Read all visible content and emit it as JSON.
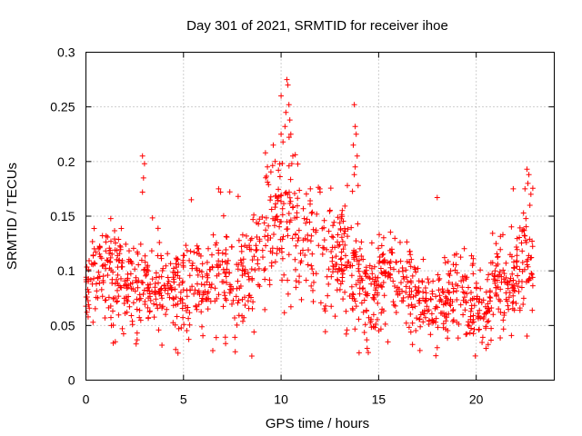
{
  "chart_data": {
    "type": "scatter",
    "title": "Day 301 of 2021, SRMTID for receiver ihoe",
    "xlabel": "GPS time / hours",
    "ylabel": "SRMTID / TECUs",
    "xlim": [
      0,
      24
    ],
    "ylim": [
      0,
      0.3
    ],
    "xticks": [
      0,
      5,
      10,
      15,
      20
    ],
    "xtick_labels": [
      "0",
      "5",
      "10",
      "15",
      "20"
    ],
    "yticks": [
      0,
      0.05,
      0.1,
      0.15,
      0.2,
      0.25,
      0.3
    ],
    "ytick_labels": [
      "0",
      "0.05",
      "0.1",
      "0.15",
      "0.2",
      "0.25",
      "0.3"
    ],
    "grid": true,
    "marker": "+",
    "color": "#ff0000",
    "data_extent_hours": [
      0,
      22.9
    ],
    "profile": [
      [
        0.0,
        0.075,
        0.018
      ],
      [
        0.5,
        0.095,
        0.022
      ],
      [
        1.0,
        0.092,
        0.022
      ],
      [
        1.5,
        0.098,
        0.024
      ],
      [
        2.0,
        0.09,
        0.022
      ],
      [
        2.5,
        0.088,
        0.022
      ],
      [
        3.0,
        0.09,
        0.024
      ],
      [
        3.5,
        0.082,
        0.02
      ],
      [
        4.0,
        0.085,
        0.02
      ],
      [
        4.5,
        0.08,
        0.02
      ],
      [
        5.0,
        0.085,
        0.024
      ],
      [
        5.5,
        0.088,
        0.024
      ],
      [
        6.0,
        0.085,
        0.022
      ],
      [
        6.5,
        0.092,
        0.024
      ],
      [
        7.0,
        0.098,
        0.026
      ],
      [
        7.5,
        0.092,
        0.024
      ],
      [
        8.0,
        0.088,
        0.024
      ],
      [
        8.5,
        0.095,
        0.024
      ],
      [
        9.0,
        0.118,
        0.026
      ],
      [
        9.5,
        0.135,
        0.03
      ],
      [
        10.0,
        0.15,
        0.034
      ],
      [
        10.5,
        0.145,
        0.034
      ],
      [
        11.0,
        0.13,
        0.03
      ],
      [
        11.5,
        0.118,
        0.028
      ],
      [
        12.0,
        0.112,
        0.028
      ],
      [
        12.5,
        0.112,
        0.026
      ],
      [
        13.0,
        0.112,
        0.026
      ],
      [
        13.5,
        0.11,
        0.028
      ],
      [
        14.0,
        0.092,
        0.024
      ],
      [
        14.5,
        0.082,
        0.022
      ],
      [
        15.0,
        0.09,
        0.024
      ],
      [
        15.5,
        0.1,
        0.026
      ],
      [
        16.0,
        0.095,
        0.024
      ],
      [
        16.5,
        0.085,
        0.022
      ],
      [
        17.0,
        0.078,
        0.02
      ],
      [
        17.5,
        0.068,
        0.018
      ],
      [
        18.0,
        0.072,
        0.02
      ],
      [
        18.5,
        0.072,
        0.02
      ],
      [
        19.0,
        0.075,
        0.02
      ],
      [
        19.5,
        0.078,
        0.022
      ],
      [
        20.0,
        0.07,
        0.02
      ],
      [
        20.5,
        0.06,
        0.016
      ],
      [
        21.0,
        0.085,
        0.022
      ],
      [
        21.5,
        0.085,
        0.024
      ],
      [
        22.0,
        0.092,
        0.024
      ],
      [
        22.5,
        0.105,
        0.028
      ],
      [
        22.9,
        0.11,
        0.028
      ]
    ],
    "peaks": [
      [
        2.9,
        0.205
      ],
      [
        3.0,
        0.198
      ],
      [
        2.95,
        0.185
      ],
      [
        2.9,
        0.172
      ],
      [
        6.8,
        0.175
      ],
      [
        6.9,
        0.172
      ],
      [
        5.4,
        0.165
      ],
      [
        7.8,
        0.168
      ],
      [
        9.2,
        0.208
      ],
      [
        9.3,
        0.195
      ],
      [
        9.6,
        0.215
      ],
      [
        9.7,
        0.2
      ],
      [
        10.0,
        0.26
      ],
      [
        10.3,
        0.275
      ],
      [
        10.35,
        0.27
      ],
      [
        10.4,
        0.252
      ],
      [
        10.25,
        0.245
      ],
      [
        10.45,
        0.238
      ],
      [
        10.2,
        0.232
      ],
      [
        10.5,
        0.225
      ],
      [
        10.1,
        0.218
      ],
      [
        10.6,
        0.205
      ],
      [
        10.55,
        0.198
      ],
      [
        10.0,
        0.225
      ],
      [
        11.5,
        0.175
      ],
      [
        12.0,
        0.172
      ],
      [
        13.4,
        0.178
      ],
      [
        13.75,
        0.252
      ],
      [
        13.8,
        0.232
      ],
      [
        13.85,
        0.225
      ],
      [
        13.7,
        0.215
      ],
      [
        13.9,
        0.205
      ],
      [
        13.8,
        0.195
      ],
      [
        13.75,
        0.188
      ],
      [
        13.95,
        0.178
      ],
      [
        18.0,
        0.167
      ],
      [
        22.6,
        0.193
      ],
      [
        22.7,
        0.188
      ],
      [
        22.65,
        0.18
      ],
      [
        22.5,
        0.175
      ],
      [
        22.8,
        0.17
      ],
      [
        22.75,
        0.16
      ],
      [
        21.9,
        0.175
      ],
      [
        4.6,
        0.028
      ],
      [
        6.5,
        0.027
      ],
      [
        8.5,
        0.022
      ],
      [
        14.0,
        0.025
      ]
    ],
    "points_per_hour": 60,
    "seed": 301
  }
}
